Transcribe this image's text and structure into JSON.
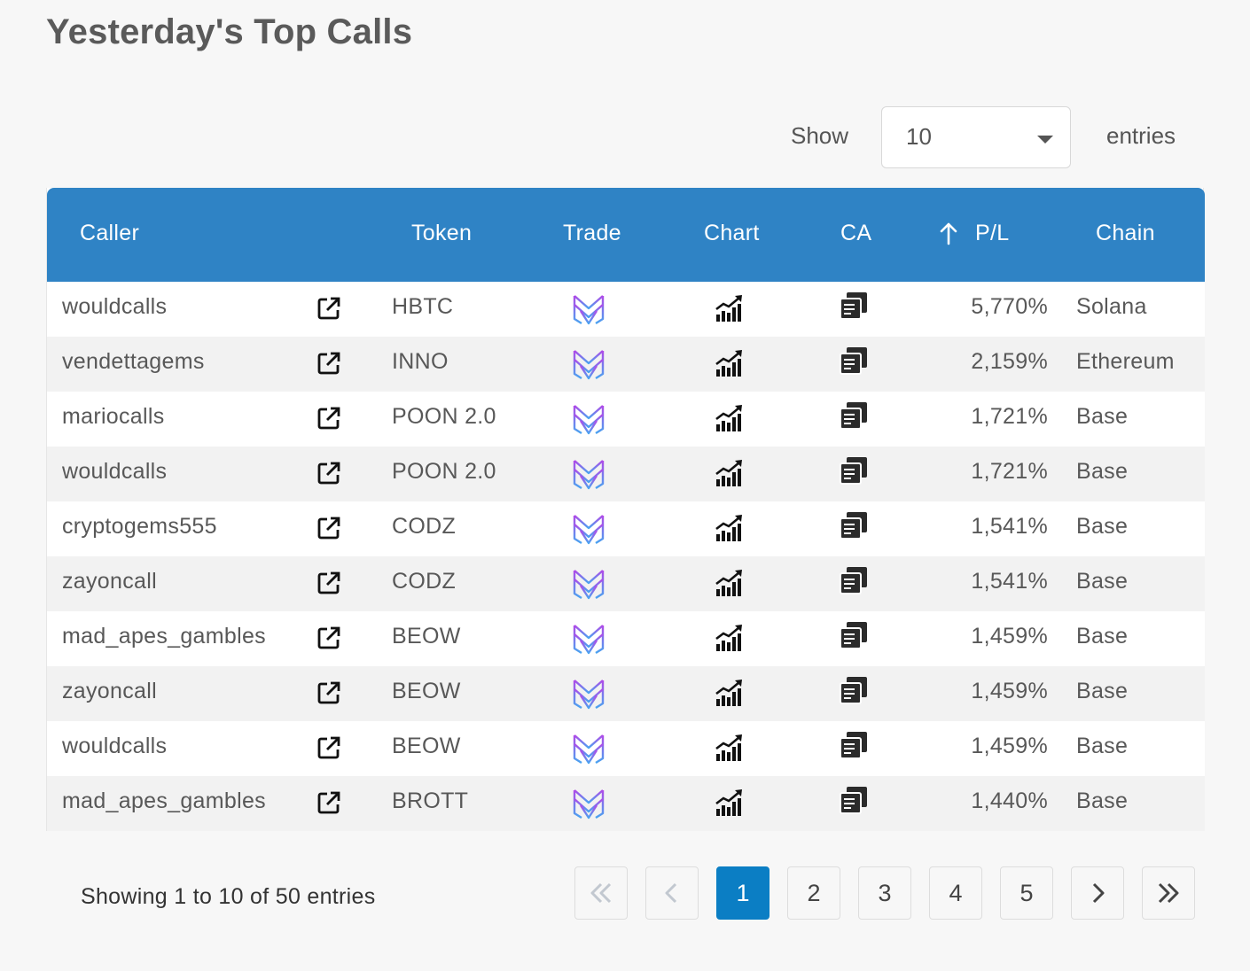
{
  "page": {
    "title": "Yesterday's Top Calls"
  },
  "length": {
    "show_label": "Show",
    "selected": "10",
    "entries_label": "entries"
  },
  "table": {
    "headers": {
      "caller": "Caller",
      "token": "Token",
      "trade": "Trade",
      "chart": "Chart",
      "ca": "CA",
      "pl": "P/L",
      "chain": "Chain"
    },
    "sort": {
      "column": "P/L",
      "icon": "arrow-up-icon"
    },
    "row_icons": {
      "link": "external-link-icon",
      "trade": "trade-logo-icon",
      "chart": "chart-growth-icon",
      "ca": "copy-contract-icon"
    },
    "rows": [
      {
        "caller": "wouldcalls",
        "token": "HBTC",
        "pl": "5,770%",
        "chain": "Solana"
      },
      {
        "caller": "vendettagems",
        "token": "INNO",
        "pl": "2,159%",
        "chain": "Ethereum"
      },
      {
        "caller": "mariocalls",
        "token": "POON 2.0",
        "pl": "1,721%",
        "chain": "Base"
      },
      {
        "caller": "wouldcalls",
        "token": "POON 2.0",
        "pl": "1,721%",
        "chain": "Base"
      },
      {
        "caller": "cryptogems555",
        "token": "CODZ",
        "pl": "1,541%",
        "chain": "Base"
      },
      {
        "caller": "zayoncall",
        "token": "CODZ",
        "pl": "1,541%",
        "chain": "Base"
      },
      {
        "caller": "mad_apes_gambles",
        "token": "BEOW",
        "pl": "1,459%",
        "chain": "Base"
      },
      {
        "caller": "zayoncall",
        "token": "BEOW",
        "pl": "1,459%",
        "chain": "Base"
      },
      {
        "caller": "wouldcalls",
        "token": "BEOW",
        "pl": "1,459%",
        "chain": "Base"
      },
      {
        "caller": "mad_apes_gambles",
        "token": "BROTT",
        "pl": "1,440%",
        "chain": "Base"
      }
    ]
  },
  "footer": {
    "info": "Showing 1 to 10 of 50 entries",
    "pages": [
      "1",
      "2",
      "3",
      "4",
      "5"
    ],
    "current_page": "1"
  },
  "colors": {
    "header_bg": "#2f83c5",
    "active_page": "#0b7ec4",
    "trade_gradient_start": "#b04ae8",
    "trade_gradient_end": "#4aa3f0"
  }
}
